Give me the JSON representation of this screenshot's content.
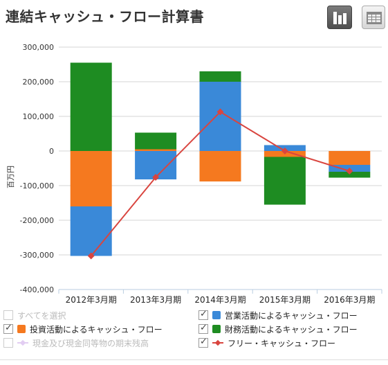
{
  "title": "連結キャッシュ・フロー計算書",
  "view_buttons": {
    "chart_icon": "bar-chart-icon",
    "table_icon": "table-icon"
  },
  "legend": {
    "select_all": "すべてを選択",
    "items": [
      {
        "label": "投資活動によるキャッシュ・フロー",
        "color": "#f5791f",
        "checked": true
      },
      {
        "label": "営業活動によるキャッシュ・フロー",
        "color": "#3a89d8",
        "checked": true
      },
      {
        "label": "財務活動によるキャッシュ・フロー",
        "color": "#1e8c22",
        "checked": true
      },
      {
        "label": "現金及び現金同等物の期末残高",
        "color": "#e2cdf2",
        "checked": false
      },
      {
        "label": "フリー・キャッシュ・フロー",
        "color": "#d9453f",
        "checked": true
      }
    ]
  },
  "chart_data": {
    "type": "bar",
    "stacked": true,
    "ylabel": "百万円",
    "ylim": [
      -400000,
      300000
    ],
    "yticks": [
      "300,000",
      "200,000",
      "100,000",
      "0",
      "-100,000",
      "-200,000",
      "-300,000",
      "-400,000"
    ],
    "categories": [
      "2012年3月期",
      "2013年3月期",
      "2014年3月期",
      "2015年3月期",
      "2016年3月期"
    ],
    "series": [
      {
        "name": "投資活動によるキャッシュ・フロー",
        "color": "#f5791f",
        "values": [
          -160000,
          5000,
          -88000,
          -17000,
          -40000
        ]
      },
      {
        "name": "営業活動によるキャッシュ・フロー",
        "color": "#3a89d8",
        "values": [
          -143000,
          -82000,
          200000,
          17000,
          -20000
        ]
      },
      {
        "name": "財務活動によるキャッシュ・フロー",
        "color": "#1e8c22",
        "values": [
          255000,
          48000,
          30000,
          -138000,
          -17000
        ]
      }
    ],
    "line": {
      "name": "フリー・キャッシュ・フロー",
      "color": "#d9453f",
      "values": [
        -303000,
        -76000,
        113000,
        0,
        -58000
      ]
    },
    "grid": true
  }
}
